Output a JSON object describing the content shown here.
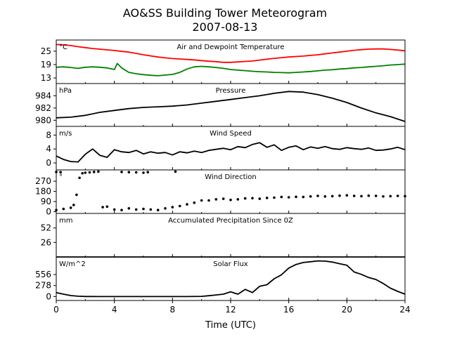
{
  "chart_data": {
    "type": "line",
    "title": "AO&SS Building Tower Meteorogram",
    "subtitle": "2007-08-13",
    "xlabel": "Time (UTC)",
    "xlim": [
      0,
      24
    ],
    "xticks": [
      0,
      4,
      8,
      12,
      16,
      20,
      24
    ],
    "colors": {
      "temperature": "#ff0000",
      "dewpoint": "#008000",
      "other": "#000000"
    },
    "panels": [
      {
        "title": "Air and Dewpoint Temperature",
        "unit": "°C",
        "ylim": [
          10.5,
          30
        ],
        "yticks": [
          13,
          19,
          25
        ],
        "series": [
          {
            "color": "#ff0000",
            "x": [
              0,
              0.5,
              1,
              1.5,
              2,
              2.5,
              3,
              3.5,
              4,
              4.5,
              5,
              5.5,
              6,
              6.5,
              7,
              7.5,
              8,
              8.5,
              9,
              9.5,
              10,
              10.5,
              11,
              11.5,
              12,
              12.5,
              13,
              13.5,
              14,
              14.5,
              15,
              15.5,
              16,
              16.5,
              17,
              17.5,
              18,
              18.5,
              19,
              19.5,
              20,
              20.5,
              21,
              21.5,
              22,
              22.5,
              23,
              23.5,
              24
            ],
            "y": [
              28.0,
              27.8,
              27.5,
              27.0,
              26.6,
              26.2,
              25.9,
              25.6,
              25.3,
              24.9,
              24.6,
              24.0,
              23.4,
              22.9,
              22.4,
              22.0,
              21.7,
              21.5,
              21.3,
              21.1,
              20.8,
              20.5,
              20.3,
              20.0,
              20.0,
              20.2,
              20.4,
              20.6,
              21.0,
              21.4,
              21.8,
              22.1,
              22.4,
              22.6,
              22.8,
              23.1,
              23.4,
              23.8,
              24.2,
              24.6,
              25.0,
              25.4,
              25.7,
              25.9,
              26.0,
              26.0,
              25.8,
              25.5,
              25.2
            ]
          },
          {
            "color": "#008000",
            "x": [
              0,
              0.5,
              1,
              1.5,
              2,
              2.5,
              3,
              3.5,
              4,
              4.2,
              4.5,
              5,
              5.5,
              6,
              6.5,
              7,
              7.5,
              8,
              8.5,
              9,
              9.5,
              10,
              10.5,
              11,
              11.5,
              12,
              12.5,
              13,
              13.5,
              14,
              14.5,
              15,
              15.5,
              16,
              16.5,
              17,
              17.5,
              18,
              18.5,
              19,
              19.5,
              20,
              20.5,
              21,
              21.5,
              22,
              22.5,
              23,
              23.5,
              24
            ],
            "y": [
              17.8,
              18.0,
              17.7,
              17.3,
              17.8,
              18.0,
              17.8,
              17.5,
              16.8,
              19.5,
              17.5,
              15.5,
              14.9,
              14.5,
              14.2,
              14.0,
              14.3,
              14.6,
              15.5,
              17.0,
              18.0,
              18.2,
              18.0,
              17.7,
              17.3,
              16.8,
              16.5,
              16.3,
              16.0,
              15.8,
              15.7,
              15.5,
              15.4,
              15.3,
              15.5,
              15.7,
              15.9,
              16.2,
              16.5,
              16.7,
              17.0,
              17.2,
              17.5,
              17.7,
              18.0,
              18.2,
              18.5,
              18.8,
              19.0,
              19.2
            ]
          }
        ]
      },
      {
        "title": "Pressure",
        "unit": "hPa",
        "ylim": [
          979.0,
          986.0
        ],
        "yticks": [
          980,
          982,
          984
        ],
        "series": [
          {
            "color": "#000000",
            "x": [
              0,
              1,
              2,
              3,
              4,
              5,
              6,
              7,
              8,
              9,
              10,
              11,
              12,
              13,
              14,
              15,
              16,
              17,
              18,
              19,
              20,
              21,
              22,
              23,
              24
            ],
            "y": [
              980.4,
              980.5,
              980.8,
              981.3,
              981.6,
              981.9,
              982.1,
              982.2,
              982.3,
              982.5,
              982.8,
              983.1,
              983.4,
              983.7,
              984.0,
              984.4,
              984.7,
              984.6,
              984.2,
              983.6,
              982.9,
              982.0,
              981.2,
              980.6,
              979.8
            ]
          }
        ]
      },
      {
        "title": "Wind Speed",
        "unit": "m/s",
        "ylim": [
          -2.0,
          10.5
        ],
        "yticks": [
          0,
          4,
          8
        ],
        "series": [
          {
            "color": "#000000",
            "x": [
              0,
              0.5,
              1,
              1.5,
              2,
              2.5,
              3,
              3.5,
              4,
              4.5,
              5,
              5.5,
              6,
              6.5,
              7,
              7.5,
              8,
              8.5,
              9,
              9.5,
              10,
              10.5,
              11,
              11.5,
              12,
              12.5,
              13,
              13.5,
              14,
              14.5,
              15,
              15.5,
              16,
              16.5,
              17,
              17.5,
              18,
              18.5,
              19,
              19.5,
              20,
              20.5,
              21,
              21.5,
              22,
              22.5,
              23,
              23.5,
              24
            ],
            "y": [
              2.0,
              1.0,
              0.4,
              0.3,
              2.5,
              4.0,
              2.2,
              1.6,
              3.8,
              3.2,
              3.0,
              3.6,
              2.6,
              3.2,
              2.8,
              3.0,
              2.3,
              3.2,
              2.9,
              3.4,
              3.0,
              3.6,
              3.9,
              4.2,
              3.8,
              4.7,
              4.4,
              5.3,
              5.8,
              4.5,
              5.2,
              3.6,
              4.5,
              4.9,
              3.8,
              4.6,
              4.2,
              4.7,
              4.1,
              3.9,
              4.4,
              4.1,
              3.9,
              4.3,
              3.6,
              3.7,
              4.0,
              4.5,
              3.8
            ]
          }
        ]
      },
      {
        "title": "Wind Direction",
        "unit": "°",
        "ylim": [
          -15,
          370
        ],
        "yticks": [
          0,
          90,
          180,
          270
        ],
        "series": [
          {
            "color": "#000000",
            "x": [
              0,
              0.5,
              1,
              1.2,
              1.4,
              1.6,
              1.8,
              2.0,
              2.3,
              2.6,
              2.9,
              3.2,
              3.5,
              4.0,
              4.5,
              5.0,
              5.5,
              6.0,
              6.5,
              7.0,
              7.5,
              8.0,
              8.5,
              9.0,
              9.5,
              10.0,
              10.5,
              11.0,
              11.5,
              12.0,
              12.5,
              13.0,
              13.5,
              14.0,
              14.5,
              15.0,
              15.5,
              16.0,
              16.5,
              17.0,
              17.5,
              18.0,
              18.5,
              19.0,
              19.5,
              20.0,
              20.5,
              21.0,
              21.5,
              22.0,
              22.5,
              23.0,
              23.5,
              24.0
            ],
            "y": [
              15,
              25,
              35,
              60,
              150,
              300,
              340,
              345,
              348,
              352,
              355,
              40,
              45,
              20,
              15,
              30,
              20,
              25,
              20,
              15,
              30,
              40,
              50,
              65,
              80,
              100,
              100,
              110,
              115,
              105,
              110,
              118,
              120,
              115,
              122,
              125,
              130,
              128,
              132,
              130,
              135,
              140,
              135,
              138,
              142,
              145,
              140,
              138,
              142,
              140,
              135,
              138,
              140,
              138
            ]
          },
          {
            "color": "#000000",
            "x": [
              0,
              0.3,
              4.5,
              5,
              5.5,
              6,
              6.3,
              8.2
            ],
            "y": [
              352,
              350,
              352,
              350,
              348,
              345,
              350,
              355
            ]
          }
        ]
      },
      {
        "title": "Accumulated Precipitation Since 0Z",
        "unit": "mm",
        "ylim": [
          0,
          78
        ],
        "yticks": [
          26,
          52
        ],
        "series": [
          {
            "color": "#000000",
            "x": [
              0,
              24
            ],
            "y": [
              0,
              0
            ]
          }
        ]
      },
      {
        "title": "Solar Flux",
        "unit": "W/m^2",
        "ylim": [
          -100,
          1000
        ],
        "yticks": [
          0,
          278,
          556
        ],
        "series": [
          {
            "color": "#000000",
            "x": [
              0,
              0.5,
              1,
              1.5,
              2,
              3,
              4,
              5,
              6,
              7,
              8,
              9,
              10,
              10.5,
              11,
              11.5,
              12,
              12.5,
              13,
              13.5,
              14,
              14.5,
              15,
              15.5,
              16,
              16.5,
              17,
              17.5,
              18,
              18.5,
              19,
              19.5,
              20,
              20.5,
              21,
              21.5,
              22,
              22.5,
              23,
              23.5,
              24
            ],
            "y": [
              100,
              60,
              25,
              8,
              2,
              0,
              0,
              0,
              0,
              0,
              0,
              0,
              5,
              20,
              40,
              60,
              120,
              60,
              180,
              100,
              260,
              300,
              450,
              550,
              720,
              810,
              860,
              880,
              900,
              895,
              870,
              830,
              790,
              620,
              560,
              480,
              430,
              330,
              210,
              130,
              60
            ]
          }
        ]
      }
    ]
  }
}
